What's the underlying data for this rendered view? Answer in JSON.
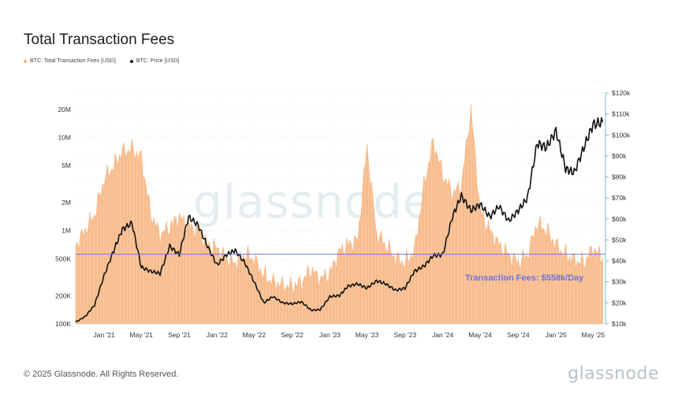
{
  "page": {
    "title": "Total Transaction Fees",
    "footer": "© 2025 Glassnode. All Rights Reserved.",
    "brand": "glassnode",
    "watermark": "glassnode"
  },
  "colors": {
    "fees": "#f7b27a",
    "fees_stroke": "#f09a55",
    "price": "#111111",
    "threshold": "#6c74e0",
    "grid": "#d9e4ea",
    "right_axis": "#5fa9c4"
  },
  "chart_data": {
    "type": "area",
    "title": "Total Transaction Fees",
    "legend_placement": "top-left",
    "grid": true,
    "x_ticks": [
      "Jan '21",
      "May '21",
      "Sep '21",
      "Jan '22",
      "May '22",
      "Sep '22",
      "Jan '23",
      "May '23",
      "Sep '23",
      "Jan '24",
      "May '24",
      "Sep '24",
      "Jan '25",
      "May '25"
    ],
    "y_left": {
      "scale": "log",
      "range": [
        100000,
        30000000
      ],
      "ticks": [
        100000,
        200000,
        500000,
        1000000,
        2000000,
        5000000,
        10000000,
        20000000
      ],
      "tick_labels": [
        "100K",
        "200K",
        "500K",
        "1M",
        "2M",
        "5M",
        "10M",
        "20M"
      ]
    },
    "y_right": {
      "scale": "linear",
      "range": [
        10000,
        120000
      ],
      "ticks": [
        10000,
        20000,
        30000,
        40000,
        50000,
        60000,
        70000,
        80000,
        90000,
        100000,
        110000,
        120000
      ],
      "tick_labels": [
        "$10k",
        "$20k",
        "$30k",
        "$40k",
        "$50k",
        "$60k",
        "$70k",
        "$80k",
        "$90k",
        "$100k",
        "$110k",
        "$120k"
      ]
    },
    "series": [
      {
        "name": "BTC: Total Transaction Fees [USD]",
        "axis": "left",
        "x": [
          "2020-10-01",
          "2020-11-01",
          "2020-12-01",
          "2021-01-01",
          "2021-02-01",
          "2021-03-01",
          "2021-04-01",
          "2021-05-01",
          "2021-06-01",
          "2021-07-01",
          "2021-08-01",
          "2021-09-01",
          "2021-10-01",
          "2021-11-01",
          "2021-12-01",
          "2022-01-01",
          "2022-02-01",
          "2022-03-01",
          "2022-04-01",
          "2022-05-01",
          "2022-06-01",
          "2022-07-01",
          "2022-08-01",
          "2022-09-01",
          "2022-10-01",
          "2022-11-01",
          "2022-12-01",
          "2023-01-01",
          "2023-02-01",
          "2023-03-01",
          "2023-04-01",
          "2023-05-01",
          "2023-06-01",
          "2023-07-01",
          "2023-08-01",
          "2023-09-01",
          "2023-10-01",
          "2023-11-01",
          "2023-12-01",
          "2024-01-01",
          "2024-02-01",
          "2024-03-01",
          "2024-04-01",
          "2024-05-01",
          "2024-06-01",
          "2024-07-01",
          "2024-08-01",
          "2024-09-01",
          "2024-10-01",
          "2024-11-01",
          "2024-12-01",
          "2025-01-01",
          "2025-02-01",
          "2025-03-01",
          "2025-04-01",
          "2025-05-01",
          "2025-06-01"
        ],
        "values": [
          700000,
          1000000,
          1500000,
          3500000,
          5000000,
          7000000,
          7500000,
          6000000,
          1500000,
          900000,
          1100000,
          1400000,
          1100000,
          1000000,
          700000,
          650000,
          500000,
          450000,
          550000,
          500000,
          330000,
          280000,
          260000,
          250000,
          280000,
          380000,
          300000,
          350000,
          600000,
          700000,
          800000,
          8000000,
          900000,
          700000,
          500000,
          450000,
          600000,
          3000000,
          9000000,
          4000000,
          2500000,
          3000000,
          20000000,
          1600000,
          1000000,
          700000,
          550000,
          450000,
          550000,
          1200000,
          1000000,
          700000,
          550000,
          480000,
          450000,
          650000,
          500000
        ]
      },
      {
        "name": "BTC: Price [USD]",
        "axis": "right",
        "x": [
          "2020-10-01",
          "2020-11-01",
          "2020-12-01",
          "2021-01-01",
          "2021-02-01",
          "2021-03-01",
          "2021-04-01",
          "2021-05-01",
          "2021-06-01",
          "2021-07-01",
          "2021-08-01",
          "2021-09-01",
          "2021-10-01",
          "2021-11-01",
          "2021-12-01",
          "2022-01-01",
          "2022-02-01",
          "2022-03-01",
          "2022-04-01",
          "2022-05-01",
          "2022-06-01",
          "2022-07-01",
          "2022-08-01",
          "2022-09-01",
          "2022-10-01",
          "2022-11-01",
          "2022-12-01",
          "2023-01-01",
          "2023-02-01",
          "2023-03-01",
          "2023-04-01",
          "2023-05-01",
          "2023-06-01",
          "2023-07-01",
          "2023-08-01",
          "2023-09-01",
          "2023-10-01",
          "2023-11-01",
          "2023-12-01",
          "2024-01-01",
          "2024-02-01",
          "2024-03-01",
          "2024-04-01",
          "2024-05-01",
          "2024-06-01",
          "2024-07-01",
          "2024-08-01",
          "2024-09-01",
          "2024-10-01",
          "2024-11-01",
          "2024-12-01",
          "2025-01-01",
          "2025-02-01",
          "2025-03-01",
          "2025-04-01",
          "2025-05-01",
          "2025-06-01"
        ],
        "values": [
          10800,
          13500,
          19000,
          33000,
          45000,
          55000,
          58000,
          37000,
          35000,
          34000,
          47000,
          43000,
          61000,
          57000,
          47000,
          38000,
          43000,
          45000,
          39000,
          30000,
          20000,
          23000,
          20000,
          19500,
          20500,
          16500,
          16800,
          23000,
          23500,
          28000,
          29000,
          27000,
          30500,
          29000,
          26000,
          27000,
          35000,
          37500,
          42500,
          43000,
          61000,
          71000,
          64000,
          67000,
          61000,
          66000,
          59000,
          64000,
          70000,
          96000,
          94000,
          102000,
          84000,
          82000,
          94000,
          105000,
          106000
        ]
      }
    ],
    "annotations": [
      {
        "type": "hline",
        "axis": "left",
        "y": 558000,
        "label": "Transaction Fees: $558k/Day"
      }
    ]
  }
}
